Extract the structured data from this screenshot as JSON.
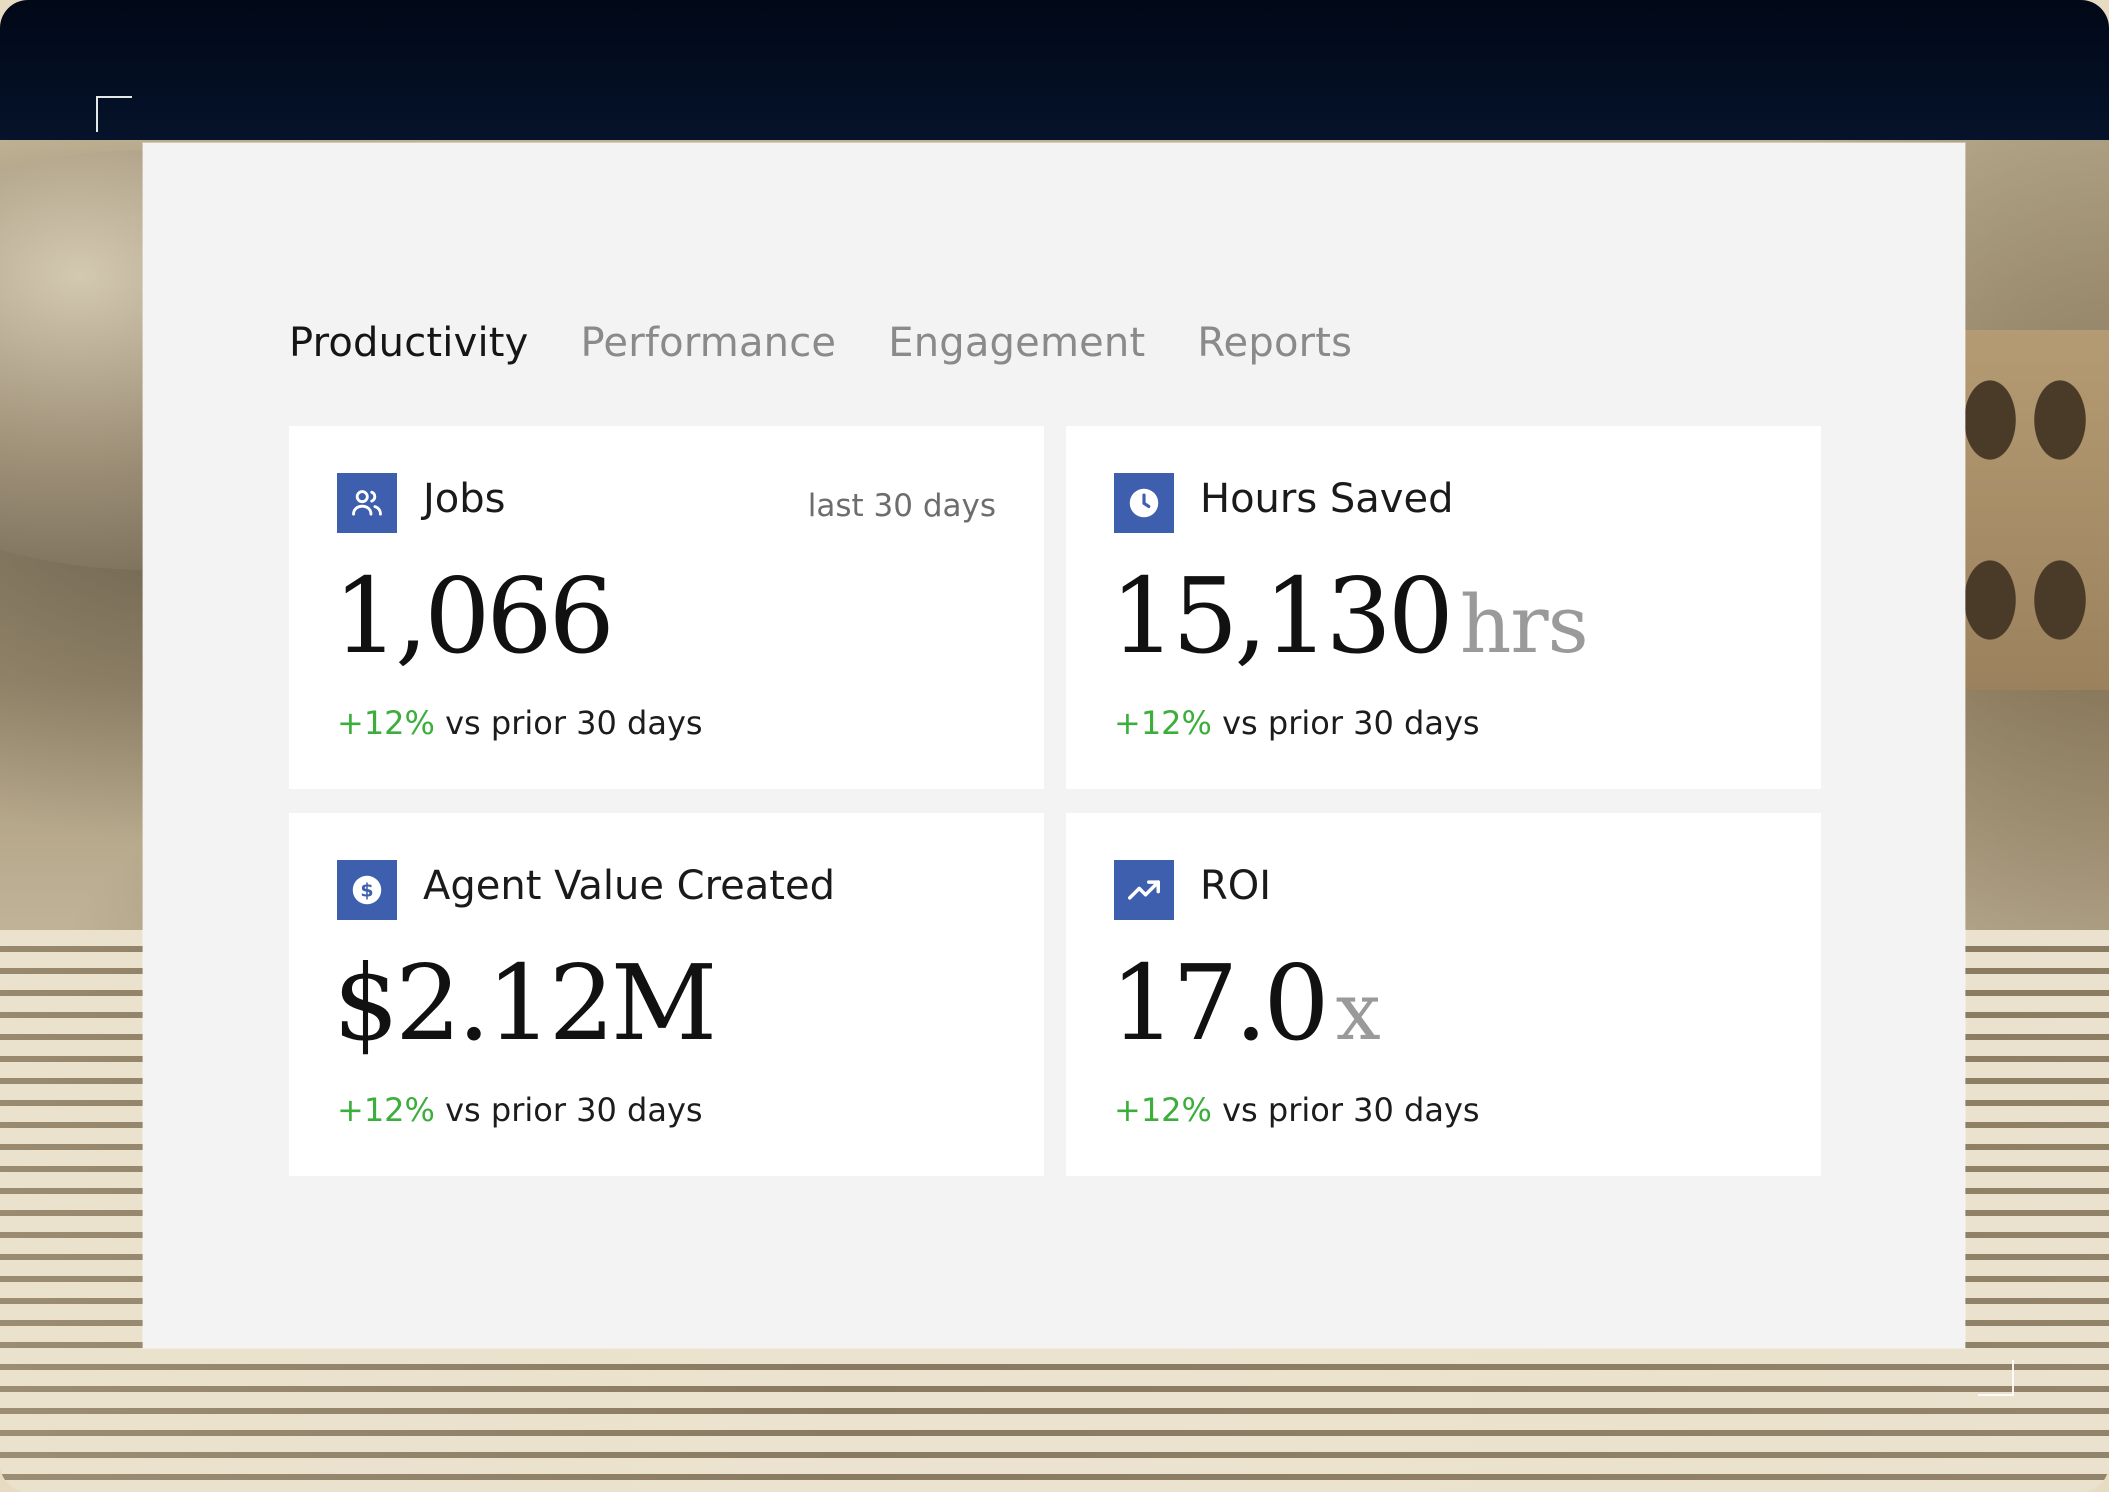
{
  "tabs": [
    {
      "label": "Productivity",
      "active": true
    },
    {
      "label": "Performance",
      "active": false
    },
    {
      "label": "Engagement",
      "active": false
    },
    {
      "label": "Reports",
      "active": false
    }
  ],
  "cards": [
    {
      "title": "Jobs",
      "period": "last 30 days",
      "value": "1,066",
      "unit": "",
      "delta_pct": "+12%",
      "delta_text": " vs prior 30 days",
      "icon": "users-icon"
    },
    {
      "title": "Hours Saved",
      "period": "",
      "value": "15,130",
      "unit": "hrs",
      "delta_pct": "+12%",
      "delta_text": " vs prior 30 days",
      "icon": "clock-icon"
    },
    {
      "title": "Agent Value Created",
      "period": "",
      "value": "$2.12M",
      "unit": "",
      "delta_pct": "+12%",
      "delta_text": " vs prior 30 days",
      "icon": "dollar-icon"
    },
    {
      "title": "ROI",
      "period": "",
      "value": "17.0",
      "unit": "x",
      "delta_pct": "+12%",
      "delta_text": " vs prior 30 days",
      "icon": "trending-up-icon"
    }
  ],
  "colors": {
    "accent": "#3d5fae",
    "positive": "#3cae3c",
    "panel": "#f3f3f3",
    "sky": "#010817"
  }
}
